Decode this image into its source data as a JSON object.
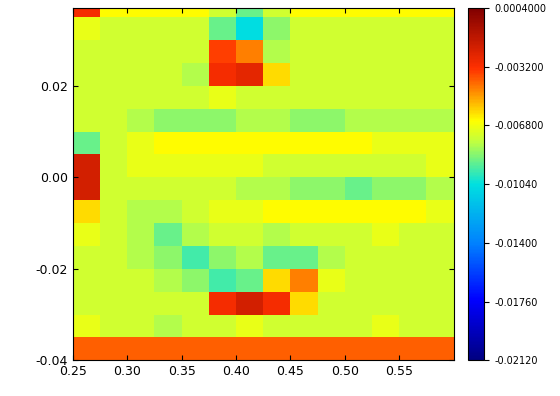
{
  "chart_data": {
    "type": "heatmap",
    "x_edges": [
      0.25,
      0.275,
      0.3,
      0.325,
      0.35,
      0.375,
      0.4,
      0.425,
      0.45,
      0.475,
      0.5,
      0.525,
      0.55,
      0.575,
      0.6
    ],
    "y_edges": [
      -0.04,
      -0.035,
      -0.03,
      -0.025,
      -0.02,
      -0.015,
      -0.01,
      -0.005,
      0.0,
      0.005,
      0.01,
      0.015,
      0.02,
      0.025,
      0.03,
      0.035,
      0.04
    ],
    "cells": [
      [
        -0.004,
        -0.004,
        -0.004,
        -0.004,
        -0.004,
        -0.004,
        -0.004,
        -0.004,
        -0.004,
        -0.004,
        -0.004,
        -0.004,
        -0.004,
        -0.004
      ],
      [
        -0.007,
        -0.0075,
        -0.0075,
        -0.008,
        -0.0075,
        -0.0075,
        -0.007,
        -0.0075,
        -0.0075,
        -0.0075,
        -0.0075,
        -0.007,
        -0.0075,
        -0.0075
      ],
      [
        -0.0075,
        -0.0075,
        -0.0075,
        -0.0075,
        -0.0075,
        -0.003,
        -0.002,
        -0.003,
        -0.006,
        -0.0075,
        -0.0075,
        -0.0075,
        -0.0075,
        -0.0075
      ],
      [
        -0.0075,
        -0.0075,
        -0.0075,
        -0.008,
        -0.0085,
        -0.0095,
        -0.009,
        -0.006,
        -0.0045,
        -0.007,
        -0.0075,
        -0.0075,
        -0.0075,
        -0.0075
      ],
      [
        -0.0075,
        -0.0075,
        -0.008,
        -0.0085,
        -0.0095,
        -0.0085,
        -0.008,
        -0.009,
        -0.009,
        -0.008,
        -0.0075,
        -0.0075,
        -0.0075,
        -0.0075
      ],
      [
        -0.007,
        -0.0075,
        -0.008,
        -0.009,
        -0.008,
        -0.0075,
        -0.0075,
        -0.008,
        -0.0075,
        -0.0075,
        -0.0075,
        -0.007,
        -0.0075,
        -0.0075
      ],
      [
        -0.006,
        -0.0075,
        -0.008,
        -0.008,
        -0.0075,
        -0.007,
        -0.007,
        -0.0065,
        -0.0065,
        -0.0065,
        -0.0065,
        -0.0065,
        -0.0065,
        -0.007
      ],
      [
        -0.002,
        -0.0075,
        -0.0075,
        -0.0075,
        -0.0075,
        -0.0075,
        -0.008,
        -0.008,
        -0.0085,
        -0.0085,
        -0.009,
        -0.0085,
        -0.0085,
        -0.008
      ],
      [
        -0.002,
        -0.0075,
        -0.007,
        -0.007,
        -0.007,
        -0.007,
        -0.007,
        -0.0075,
        -0.0075,
        -0.0075,
        -0.0075,
        -0.0075,
        -0.0075,
        -0.007
      ],
      [
        -0.009,
        -0.0075,
        -0.007,
        -0.0065,
        -0.0065,
        -0.0065,
        -0.0065,
        -0.0065,
        -0.0065,
        -0.0065,
        -0.0065,
        -0.007,
        -0.007,
        -0.007
      ],
      [
        -0.0075,
        -0.0075,
        -0.008,
        -0.0085,
        -0.0085,
        -0.0085,
        -0.008,
        -0.008,
        -0.0085,
        -0.0085,
        -0.008,
        -0.008,
        -0.008,
        -0.008
      ],
      [
        -0.0075,
        -0.0075,
        -0.0075,
        -0.0075,
        -0.0075,
        -0.007,
        -0.0075,
        -0.0075,
        -0.0075,
        -0.0075,
        -0.0075,
        -0.0075,
        -0.0075,
        -0.0075
      ],
      [
        -0.0075,
        -0.0075,
        -0.0075,
        -0.0075,
        -0.008,
        -0.003,
        -0.0025,
        -0.006,
        -0.0075,
        -0.0075,
        -0.0075,
        -0.0075,
        -0.0075,
        -0.0075
      ],
      [
        -0.0075,
        -0.0075,
        -0.0075,
        -0.0075,
        -0.0075,
        -0.0035,
        -0.0045,
        -0.008,
        -0.0075,
        -0.0075,
        -0.0075,
        -0.0075,
        -0.0075,
        -0.0075
      ],
      [
        -0.007,
        -0.0075,
        -0.0075,
        -0.0075,
        -0.0075,
        -0.009,
        -0.0105,
        -0.0085,
        -0.0075,
        -0.0075,
        -0.0075,
        -0.0075,
        -0.0075,
        -0.0075
      ],
      [
        -0.003,
        -0.0065,
        -0.0065,
        -0.0065,
        -0.0065,
        -0.0075,
        -0.009,
        -0.0075,
        -0.0065,
        -0.0065,
        -0.0065,
        -0.0065,
        -0.0065,
        -0.0065
      ]
    ],
    "xlim": [
      0.25,
      0.6
    ],
    "ylim": [
      -0.04,
      0.037
    ],
    "xticks": [
      0.25,
      {
        "value": 0.3,
        "label": "0.30"
      },
      0.35,
      {
        "value": 0.4,
        "label": "0.40"
      },
      0.45,
      {
        "value": 0.5,
        "label": "0.50"
      },
      0.55
    ],
    "yticks": [
      -0.04,
      -0.02,
      {
        "value": 0,
        "label": "0.00"
      },
      0.02
    ],
    "colorbar_range": [
      -0.0212,
      0.0004
    ],
    "colorbar_ticks": [
      {
        "value": 0.0004,
        "label": "0.0004000"
      },
      {
        "value": -0.0032,
        "label": "-0.003200"
      },
      {
        "value": -0.0068,
        "label": "-0.006800"
      },
      {
        "value": -0.0104,
        "label": "-0.01040"
      },
      {
        "value": -0.014,
        "label": "-0.01400"
      },
      {
        "value": -0.0176,
        "label": "-0.01760"
      },
      {
        "value": -0.0212,
        "label": "-0.02120"
      }
    ]
  }
}
